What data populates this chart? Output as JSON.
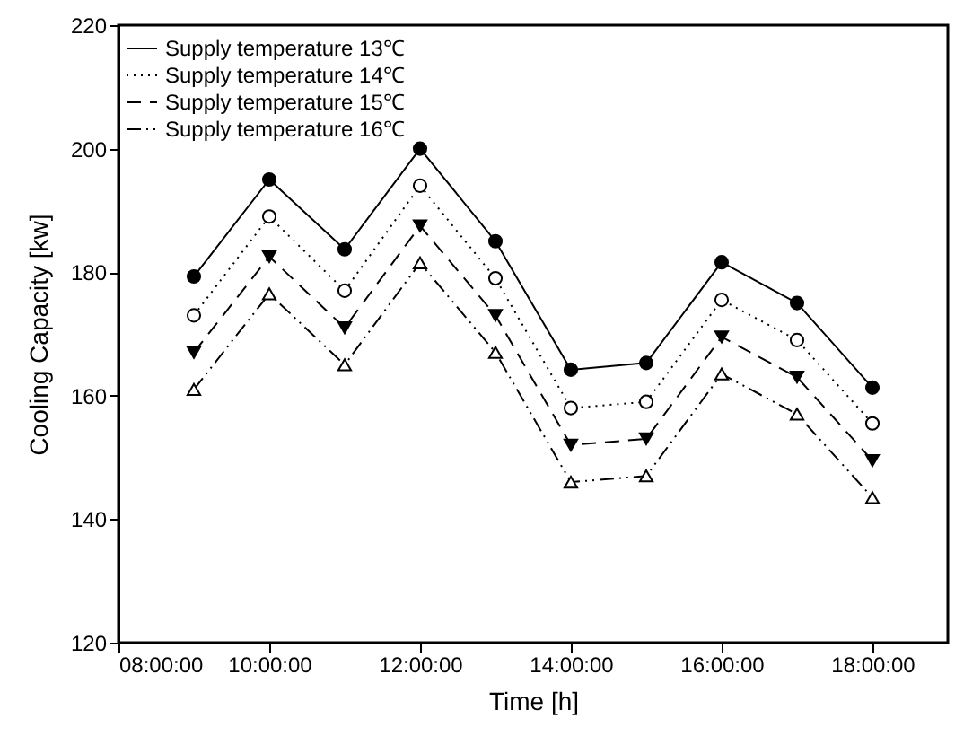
{
  "chart_data": {
    "type": "line",
    "xlabel": "Time [h]",
    "ylabel": "Cooling Capacity [kw]",
    "x": [
      9,
      10,
      11,
      12,
      13,
      14,
      15,
      16,
      17,
      18
    ],
    "xlim": [
      8,
      19
    ],
    "xticks": [
      {
        "value": 8,
        "label": "08:00:00"
      },
      {
        "value": 10,
        "label": "10:00:00"
      },
      {
        "value": 12,
        "label": "12:00:00"
      },
      {
        "value": 14,
        "label": "14:00:00"
      },
      {
        "value": 16,
        "label": "16:00:00"
      },
      {
        "value": 18,
        "label": "18:00:00"
      }
    ],
    "ylim": [
      120,
      220
    ],
    "yticks": [
      120,
      140,
      160,
      180,
      200,
      220
    ],
    "grid": false,
    "legend": "top left",
    "series": [
      {
        "name": "Supply temperature 13℃",
        "color": "#000000",
        "marker": "circle",
        "line_style": "solid",
        "values": [
          179.3,
          195,
          183.7,
          200,
          185,
          164.2,
          165.3,
          181.6,
          175,
          161.3
        ]
      },
      {
        "name": "Supply temperature 14℃",
        "color": "#000000",
        "marker": "circle",
        "line_style": "dotted",
        "values": [
          173,
          189,
          177,
          194,
          179,
          158,
          159,
          175.5,
          169,
          155.5
        ]
      },
      {
        "name": "Supply temperature 15℃",
        "color": "#000000",
        "marker": "triangle-down",
        "line_style": "dashed",
        "values": [
          167,
          182.5,
          171,
          187.5,
          173,
          152,
          153,
          169.5,
          163,
          149.5
        ]
      },
      {
        "name": "Supply temperature 16℃",
        "color": "#000000",
        "marker": "triangle-up",
        "line_style": "dashdot",
        "values": [
          161,
          176.5,
          165,
          181.5,
          167,
          146,
          147,
          163.5,
          157,
          143.5
        ]
      }
    ]
  }
}
